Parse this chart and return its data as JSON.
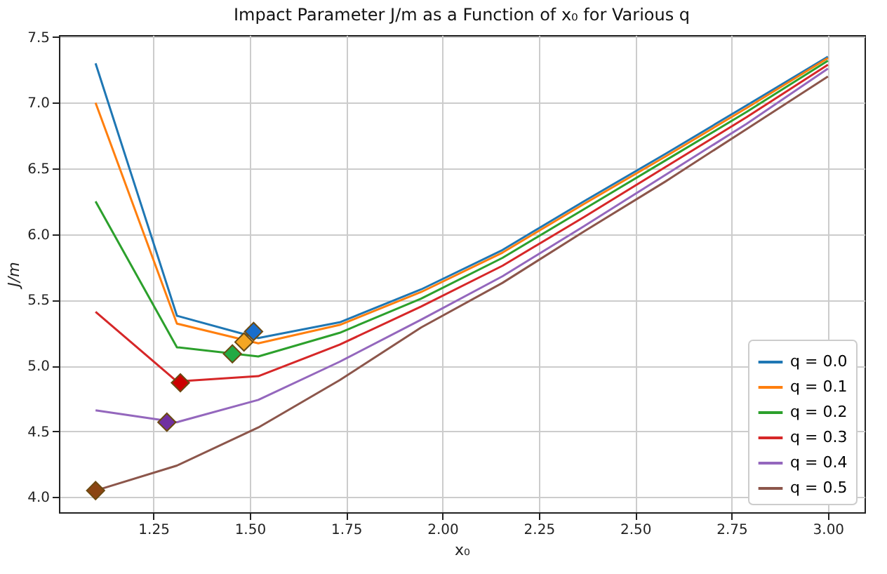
{
  "chart_data": {
    "type": "line",
    "title": "Impact Parameter J/m as a Function of x₀ for Various q",
    "xlabel": "x₀",
    "ylabel": "J/m",
    "x": [
      1.1,
      1.3111,
      1.5222,
      1.7333,
      1.9444,
      2.1556,
      2.3667,
      2.5778,
      2.7889,
      3.0
    ],
    "xlim": [
      1.005,
      3.095
    ],
    "ylim": [
      3.885,
      7.515
    ],
    "xticks": [
      {
        "value": 1.25,
        "label": "1.25"
      },
      {
        "value": 1.5,
        "label": "1.50"
      },
      {
        "value": 1.75,
        "label": "1.75"
      },
      {
        "value": 2.0,
        "label": "2.00"
      },
      {
        "value": 2.25,
        "label": "2.25"
      },
      {
        "value": 2.5,
        "label": "2.50"
      },
      {
        "value": 2.75,
        "label": "2.75"
      },
      {
        "value": 3.0,
        "label": "3.00"
      }
    ],
    "yticks": [
      {
        "value": 4.0,
        "label": "4.0"
      },
      {
        "value": 4.5,
        "label": "4.5"
      },
      {
        "value": 5.0,
        "label": "5.0"
      },
      {
        "value": 5.5,
        "label": "5.5"
      },
      {
        "value": 6.0,
        "label": "6.0"
      },
      {
        "value": 6.5,
        "label": "6.5"
      },
      {
        "value": 7.0,
        "label": "7.0"
      },
      {
        "value": 7.5,
        "label": "7.5"
      }
    ],
    "grid": true,
    "legend": "bottom right",
    "marker": "none",
    "line_style": "solid",
    "series": [
      {
        "name": "q = 0.0",
        "color": "#1f77b4",
        "values": [
          7.3,
          5.38,
          5.21,
          5.33,
          5.58,
          5.88,
          6.25,
          6.61,
          6.98,
          7.35
        ]
      },
      {
        "name": "q = 0.1",
        "color": "#ff7f0e",
        "values": [
          7.0,
          5.32,
          5.17,
          5.31,
          5.56,
          5.86,
          6.23,
          6.59,
          6.96,
          7.34
        ]
      },
      {
        "name": "q = 0.2",
        "color": "#2ca02c",
        "values": [
          6.25,
          5.14,
          5.07,
          5.25,
          5.51,
          5.82,
          6.19,
          6.56,
          6.93,
          7.32
        ]
      },
      {
        "name": "q = 0.3",
        "color": "#d62728",
        "values": [
          5.41,
          4.88,
          4.92,
          5.16,
          5.45,
          5.76,
          6.13,
          6.51,
          6.89,
          7.29
        ]
      },
      {
        "name": "q = 0.4",
        "color": "#9467bd",
        "values": [
          4.66,
          4.57,
          4.74,
          5.03,
          5.35,
          5.68,
          6.06,
          6.45,
          6.84,
          7.26
        ]
      },
      {
        "name": "q = 0.5",
        "color": "#8c564b",
        "values": [
          4.05,
          4.24,
          4.53,
          4.89,
          5.29,
          5.63,
          6.02,
          6.4,
          6.8,
          7.2
        ]
      },
      {
        "type": "scatter",
        "marker": "diamond",
        "x": [
          1.51,
          1.485,
          1.455,
          1.32,
          1.285,
          1.1
        ],
        "values": [
          5.26,
          5.18,
          5.09,
          4.87,
          4.57,
          4.05
        ],
        "colors": [
          "#1a6ecc",
          "#f5a623",
          "#22aa44",
          "#cc0000",
          "#7030a0",
          "#8b4513"
        ]
      }
    ]
  }
}
